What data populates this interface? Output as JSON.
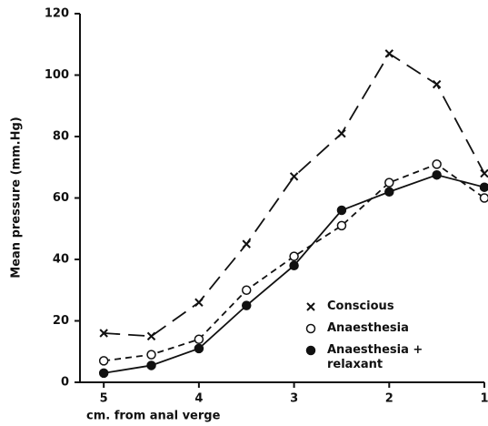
{
  "chart_data": {
    "type": "line",
    "y_label": "Mean pressure (mm.Hg)",
    "x_label": "cm. from anal verge",
    "x": [
      5,
      4.5,
      4,
      3.5,
      3,
      2.5,
      2,
      1.5,
      1
    ],
    "xlim": [
      5.25,
      1
    ],
    "xticks": [
      5,
      4,
      3,
      2,
      1
    ],
    "ylim": [
      0,
      120
    ],
    "yticks": [
      0,
      20,
      40,
      60,
      80,
      100,
      120
    ],
    "legend": "lower right",
    "series": [
      {
        "name": "Conscious",
        "color": "#111111",
        "marker": "x",
        "dash": "long",
        "values": [
          16,
          15,
          26,
          45,
          67,
          81,
          107,
          97,
          68
        ]
      },
      {
        "name": "Anaesthesia",
        "color": "#111111",
        "marker": "open",
        "dash": "short",
        "values": [
          7,
          9,
          14,
          30,
          41,
          51,
          65,
          71,
          60
        ]
      },
      {
        "name": "Anaesthesia + relaxant",
        "color": "#111111",
        "marker": "filled",
        "dash": "solid",
        "values": [
          3,
          5.5,
          11,
          25,
          38,
          56,
          62,
          67.5,
          63.5
        ]
      }
    ]
  }
}
